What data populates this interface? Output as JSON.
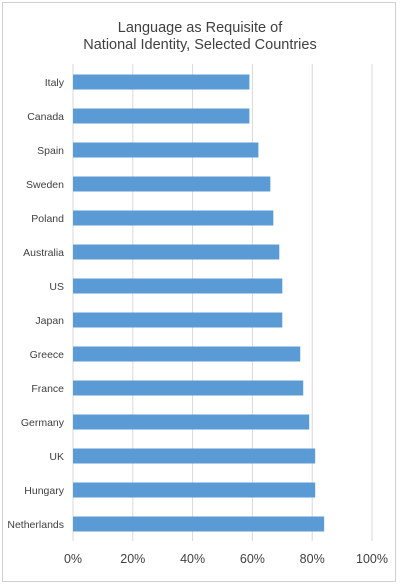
{
  "chart_data": {
    "type": "bar",
    "orientation": "horizontal",
    "title": [
      "Language as Requisite of",
      "National Identity, Selected Countries"
    ],
    "xlabel": "",
    "ylabel": "",
    "categories": [
      "Italy",
      "Canada",
      "Spain",
      "Sweden",
      "Poland",
      "Australia",
      "US",
      "Japan",
      "Greece",
      "France",
      "Germany",
      "UK",
      "Hungary",
      "Netherlands"
    ],
    "values": [
      59,
      59,
      62,
      66,
      67,
      69,
      70,
      70,
      76,
      77,
      79,
      81,
      81,
      84
    ],
    "xlim": [
      0,
      100
    ],
    "xticks": [
      "0%",
      "20%",
      "40%",
      "60%",
      "80%",
      "100%"
    ],
    "tick_values": [
      0,
      20,
      40,
      60,
      80,
      100
    ],
    "value_unit": "%",
    "grid": true,
    "bar_color": "#5b9bd5",
    "grid_color": "#d9d9d9",
    "text_color": "#404040"
  }
}
